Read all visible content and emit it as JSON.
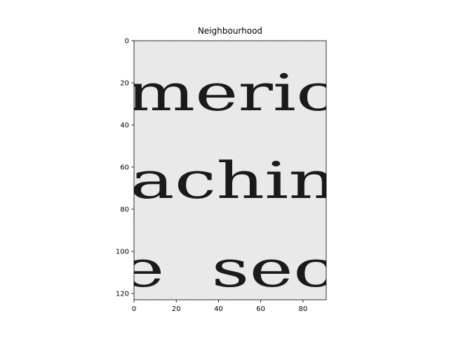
{
  "title": "Neighbourhood",
  "image": {
    "text_lines": [
      "meric",
      "achin",
      "e  sec"
    ]
  },
  "axes": {
    "xlim": [
      0,
      91
    ],
    "ylim": [
      123,
      0
    ],
    "x_ticks": [
      0,
      20,
      40,
      60,
      80
    ],
    "y_ticks": [
      0,
      20,
      40,
      60,
      80,
      100,
      120
    ]
  },
  "colors": {
    "paper": "#ececec",
    "ink": "#1a1a1a",
    "frame": "#000000"
  }
}
